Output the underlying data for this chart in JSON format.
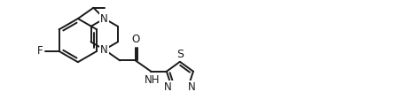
{
  "background_color": "#ffffff",
  "line_color": "#1a1a1a",
  "line_width": 1.4,
  "font_size": 8.5,
  "figsize": [
    4.6,
    1.04
  ],
  "dpi": 100,
  "xlim": [
    0,
    460
  ],
  "ylim": [
    0,
    104
  ]
}
